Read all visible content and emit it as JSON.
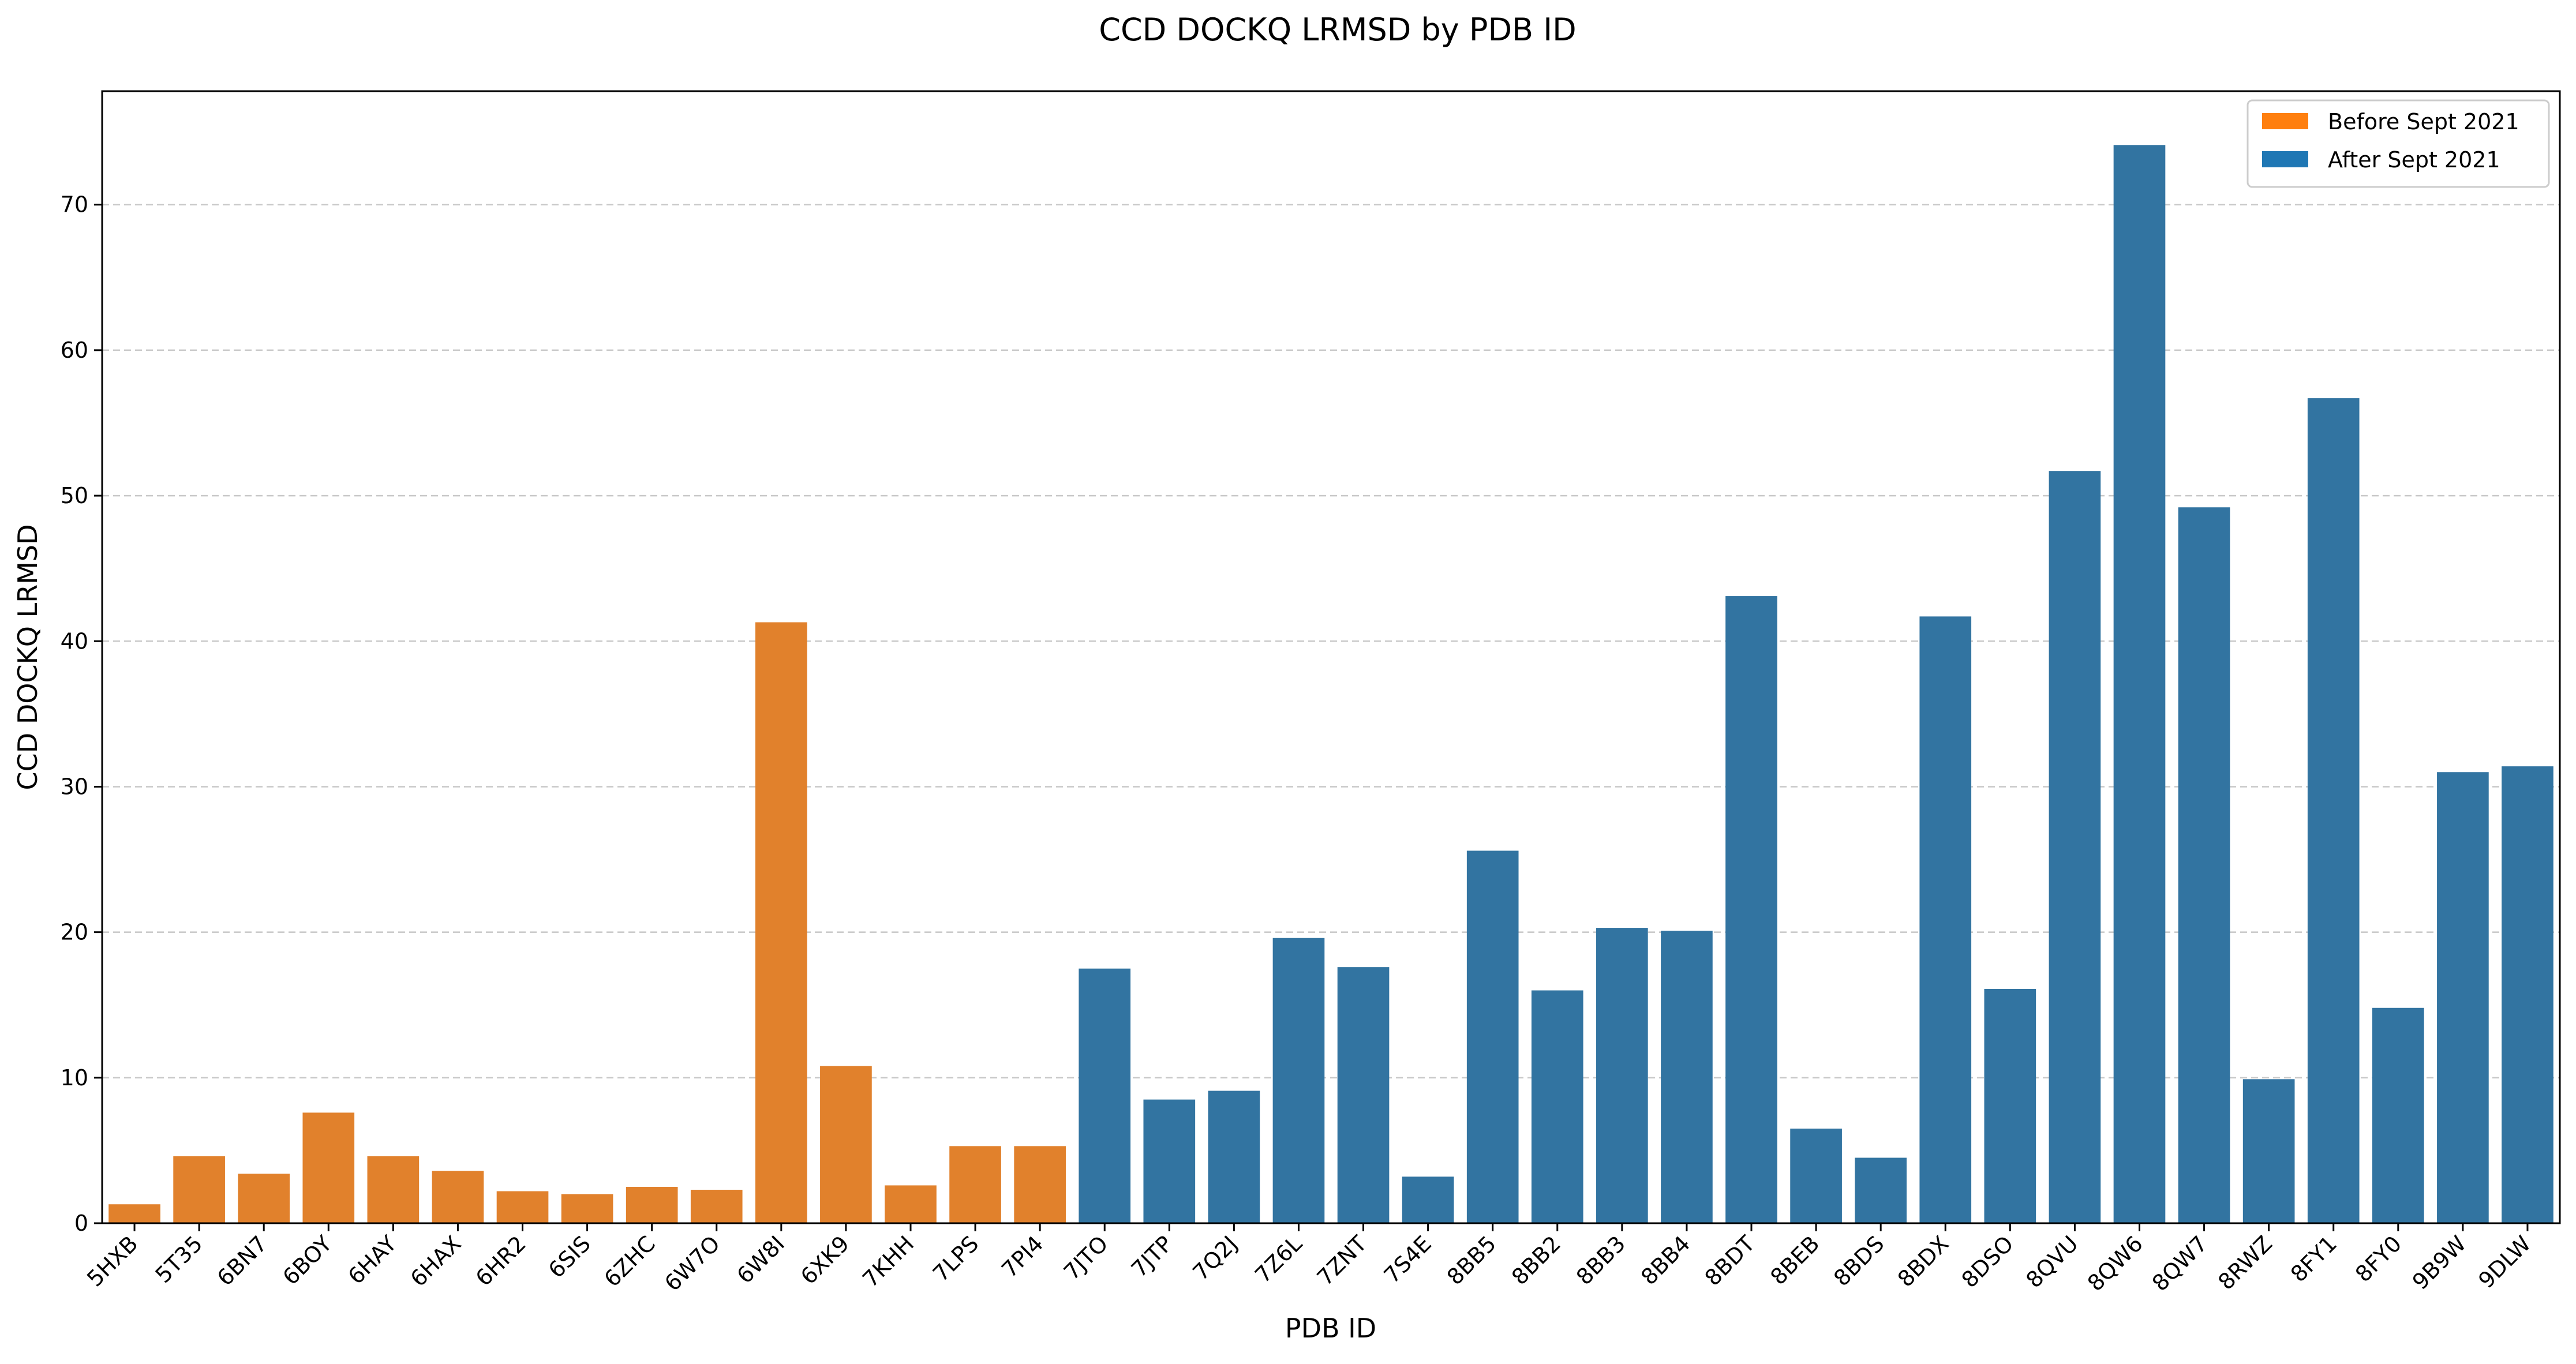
{
  "chart_data": {
    "type": "bar",
    "title": "CCD DOCKQ LRMSD by PDB ID",
    "xlabel": "PDB ID",
    "ylabel": "CCD DOCKQ LRMSD",
    "ylim": [
      0,
      77.8
    ],
    "yticks": [
      0,
      10,
      20,
      30,
      40,
      50,
      60,
      70
    ],
    "grid": "horizontal dashed",
    "legend_position": "top-right",
    "categories": [
      "5HXB",
      "5T35",
      "6BN7",
      "6BOY",
      "6HAY",
      "6HAX",
      "6HR2",
      "6SIS",
      "6ZHC",
      "6W7O",
      "6W8I",
      "6XK9",
      "7KHH",
      "7LPS",
      "7PI4",
      "7JTO",
      "7JTP",
      "7Q2J",
      "7Z6L",
      "7ZNT",
      "7S4E",
      "8BB5",
      "8BB2",
      "8BB3",
      "8BB4",
      "8BDT",
      "8BEB",
      "8BDS",
      "8BDX",
      "8DSO",
      "8QVU",
      "8QW6",
      "8QW7",
      "8RWZ",
      "8FY1",
      "8FY0",
      "9B9W",
      "9DLW"
    ],
    "values": [
      1.3,
      4.6,
      3.4,
      7.6,
      4.6,
      3.6,
      2.2,
      2.0,
      2.5,
      2.3,
      41.3,
      10.8,
      2.6,
      5.3,
      5.3,
      17.5,
      8.5,
      9.1,
      19.6,
      17.6,
      3.2,
      25.6,
      16.0,
      20.3,
      20.1,
      43.1,
      6.5,
      4.5,
      41.7,
      16.1,
      51.7,
      74.1,
      49.2,
      9.9,
      56.7,
      14.8,
      31.0,
      31.4
    ],
    "groups": [
      "Before Sept 2021",
      "Before Sept 2021",
      "Before Sept 2021",
      "Before Sept 2021",
      "Before Sept 2021",
      "Before Sept 2021",
      "Before Sept 2021",
      "Before Sept 2021",
      "Before Sept 2021",
      "Before Sept 2021",
      "Before Sept 2021",
      "Before Sept 2021",
      "Before Sept 2021",
      "Before Sept 2021",
      "Before Sept 2021",
      "After Sept 2021",
      "After Sept 2021",
      "After Sept 2021",
      "After Sept 2021",
      "After Sept 2021",
      "After Sept 2021",
      "After Sept 2021",
      "After Sept 2021",
      "After Sept 2021",
      "After Sept 2021",
      "After Sept 2021",
      "After Sept 2021",
      "After Sept 2021",
      "After Sept 2021",
      "After Sept 2021",
      "After Sept 2021",
      "After Sept 2021",
      "After Sept 2021",
      "After Sept 2021",
      "After Sept 2021",
      "After Sept 2021",
      "After Sept 2021",
      "After Sept 2021"
    ],
    "legend": [
      {
        "name": "Before Sept 2021",
        "color": "#ff7f0e",
        "bar_color": "#e1812c"
      },
      {
        "name": "After Sept 2021",
        "color": "#1f77b4",
        "bar_color": "#3274a1"
      }
    ]
  }
}
